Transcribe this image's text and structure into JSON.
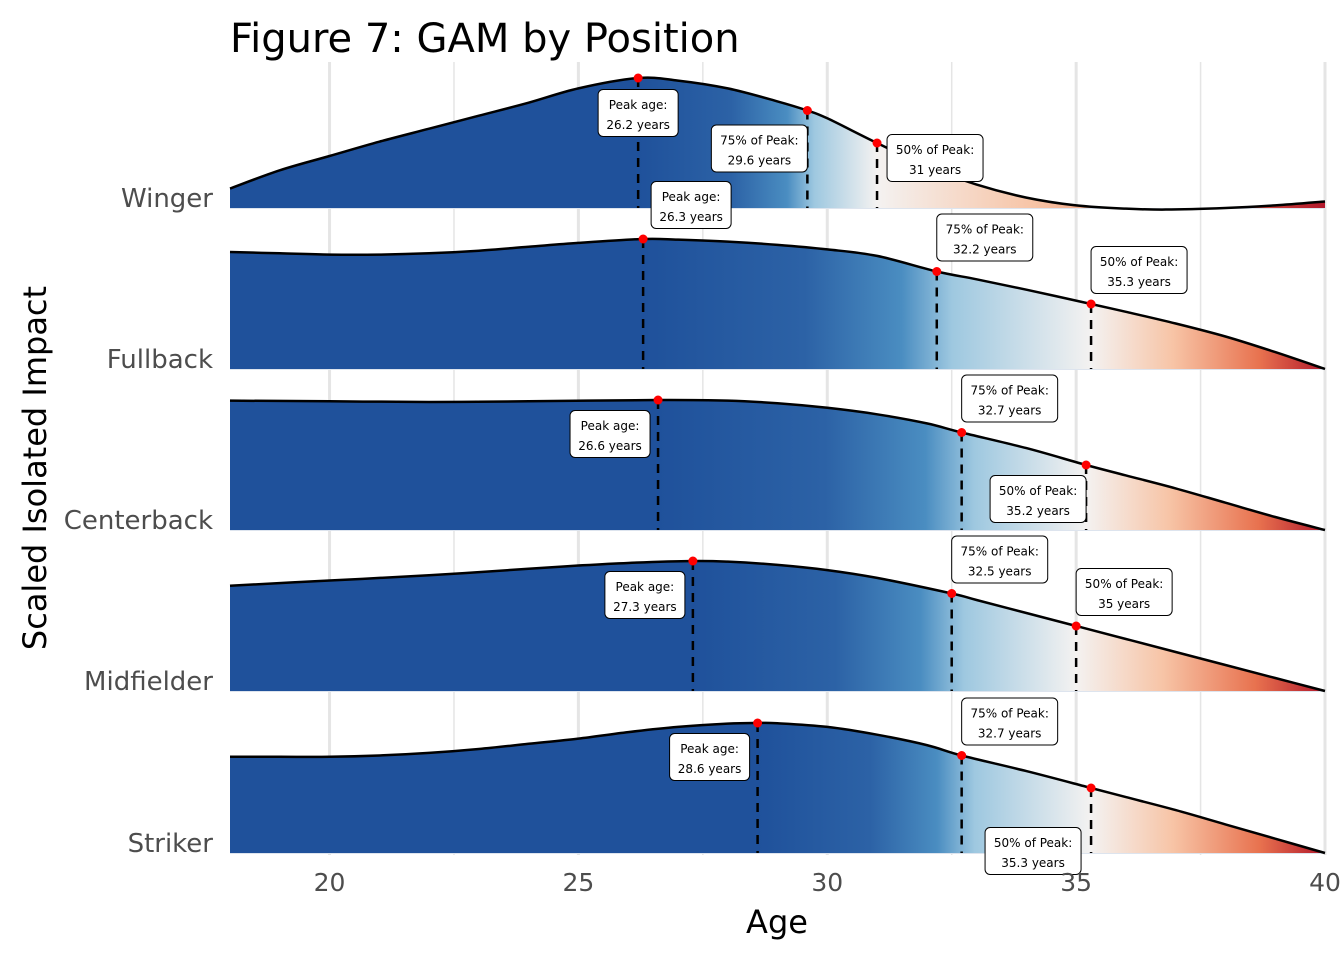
{
  "chart_data": {
    "type": "area",
    "title": "Figure 7: GAM by Position",
    "xlabel": "Age",
    "ylabel": "Scaled Isolated Impact",
    "xlim": [
      18,
      40
    ],
    "x_ticks": [
      20,
      25,
      30,
      35,
      40
    ],
    "x_tick_labels": [
      "20",
      "25",
      "30",
      "35",
      "40"
    ],
    "x_minor_ticks": [
      22.5,
      27.5,
      32.5,
      37.5
    ],
    "grid": true,
    "colors": {
      "dark_blue": "#1f519b",
      "mid_blue": "#4a8dc1",
      "light_blue": "#9ec8e0",
      "neutral": "#f4f2f1",
      "light_orange": "#f7c4a6",
      "orange": "#e8724f",
      "dark_red": "#b2182b",
      "point": "#ff0000",
      "line": "#000000",
      "grid": "#e5e5e5"
    },
    "series": [
      {
        "name": "Winger",
        "x": [
          18,
          19,
          20,
          21,
          22,
          23,
          24,
          25,
          26.2,
          27,
          28,
          29,
          29.6,
          30,
          31,
          32,
          33,
          34,
          35,
          36,
          36.8,
          38,
          39,
          40
        ],
        "y": [
          0.15,
          0.29,
          0.4,
          0.51,
          0.61,
          0.71,
          0.81,
          0.92,
          1.0,
          0.98,
          0.92,
          0.82,
          0.75,
          0.69,
          0.5,
          0.32,
          0.18,
          0.08,
          0.02,
          -0.005,
          -0.012,
          0.0,
          0.02,
          0.05
        ],
        "peak": {
          "age": 26.2,
          "label_line1": "Peak age:",
          "label_line2": "26.2 years"
        },
        "p75": {
          "age": 29.6,
          "value": 0.75,
          "label_line1": "75% of Peak:",
          "label_line2": "29.6 years"
        },
        "p50": {
          "age": 31,
          "value": 0.5,
          "label_line1": "50% of Peak:",
          "label_line2": "31 years"
        }
      },
      {
        "name": "Fullback",
        "x": [
          18,
          19,
          20,
          21,
          22,
          23,
          24,
          25,
          26.3,
          27,
          28,
          29,
          30,
          31,
          32.2,
          33,
          34,
          35.3,
          36,
          37,
          38,
          39,
          40
        ],
        "y": [
          0.9,
          0.89,
          0.88,
          0.88,
          0.89,
          0.91,
          0.94,
          0.97,
          1.0,
          0.995,
          0.98,
          0.955,
          0.92,
          0.87,
          0.75,
          0.69,
          0.61,
          0.5,
          0.44,
          0.35,
          0.25,
          0.13,
          0.0
        ],
        "peak": {
          "age": 26.3,
          "label_line1": "Peak age:",
          "label_line2": "26.3 years"
        },
        "p75": {
          "age": 32.2,
          "value": 0.75,
          "label_line1": "75% of Peak:",
          "label_line2": "32.2 years"
        },
        "p50": {
          "age": 35.3,
          "value": 0.5,
          "label_line1": "50% of Peak:",
          "label_line2": "35.3 years"
        }
      },
      {
        "name": "Centerback",
        "x": [
          18,
          20,
          22,
          24,
          26.6,
          28,
          29,
          30,
          31,
          32,
          32.7,
          34,
          35.2,
          36,
          37,
          38,
          39,
          40
        ],
        "y": [
          0.995,
          0.99,
          0.985,
          0.99,
          1.0,
          0.995,
          0.975,
          0.94,
          0.89,
          0.82,
          0.75,
          0.63,
          0.5,
          0.42,
          0.32,
          0.21,
          0.1,
          0.0
        ],
        "peak": {
          "age": 26.6,
          "label_line1": "Peak age:",
          "label_line2": "26.6 years"
        },
        "p75": {
          "age": 32.7,
          "value": 0.75,
          "label_line1": "75% of Peak:",
          "label_line2": "32.7 years"
        },
        "p50": {
          "age": 35.2,
          "value": 0.5,
          "label_line1": "50% of Peak:",
          "label_line2": "35.2 years"
        }
      },
      {
        "name": "Midfielder",
        "x": [
          18,
          20,
          22,
          24,
          25,
          26,
          27.3,
          28,
          29,
          30,
          31,
          32.5,
          33,
          34,
          35,
          36,
          37,
          38,
          39,
          40
        ],
        "y": [
          0.81,
          0.85,
          0.89,
          0.94,
          0.965,
          0.985,
          1.0,
          0.995,
          0.97,
          0.93,
          0.87,
          0.75,
          0.7,
          0.6,
          0.5,
          0.4,
          0.3,
          0.2,
          0.1,
          0.0
        ],
        "peak": {
          "age": 27.3,
          "label_line1": "Peak age:",
          "label_line2": "27.3 years"
        },
        "p75": {
          "age": 32.5,
          "value": 0.75,
          "label_line1": "75% of Peak:",
          "label_line2": "32.5 years"
        },
        "p50": {
          "age": 35,
          "value": 0.5,
          "label_line1": "50% of Peak:",
          "label_line2": "35 years"
        }
      },
      {
        "name": "Striker",
        "x": [
          18,
          19,
          20,
          21,
          22,
          23,
          24,
          25,
          26,
          27,
          28,
          28.6,
          29,
          30,
          31,
          32,
          32.7,
          34,
          35.3,
          36,
          37,
          38,
          39,
          40
        ],
        "y": [
          0.74,
          0.74,
          0.74,
          0.75,
          0.77,
          0.8,
          0.84,
          0.88,
          0.93,
          0.97,
          0.995,
          1.0,
          0.998,
          0.97,
          0.91,
          0.83,
          0.75,
          0.63,
          0.5,
          0.43,
          0.33,
          0.22,
          0.11,
          0.0
        ],
        "peak": {
          "age": 28.6,
          "label_line1": "Peak age:",
          "label_line2": "28.6 years"
        },
        "p75": {
          "age": 32.7,
          "value": 0.75,
          "label_line1": "75% of Peak:",
          "label_line2": "32.7 years"
        },
        "p50": {
          "age": 35.3,
          "value": 0.5,
          "label_line1": "50% of Peak:",
          "label_line2": "35.3 years"
        }
      }
    ]
  }
}
